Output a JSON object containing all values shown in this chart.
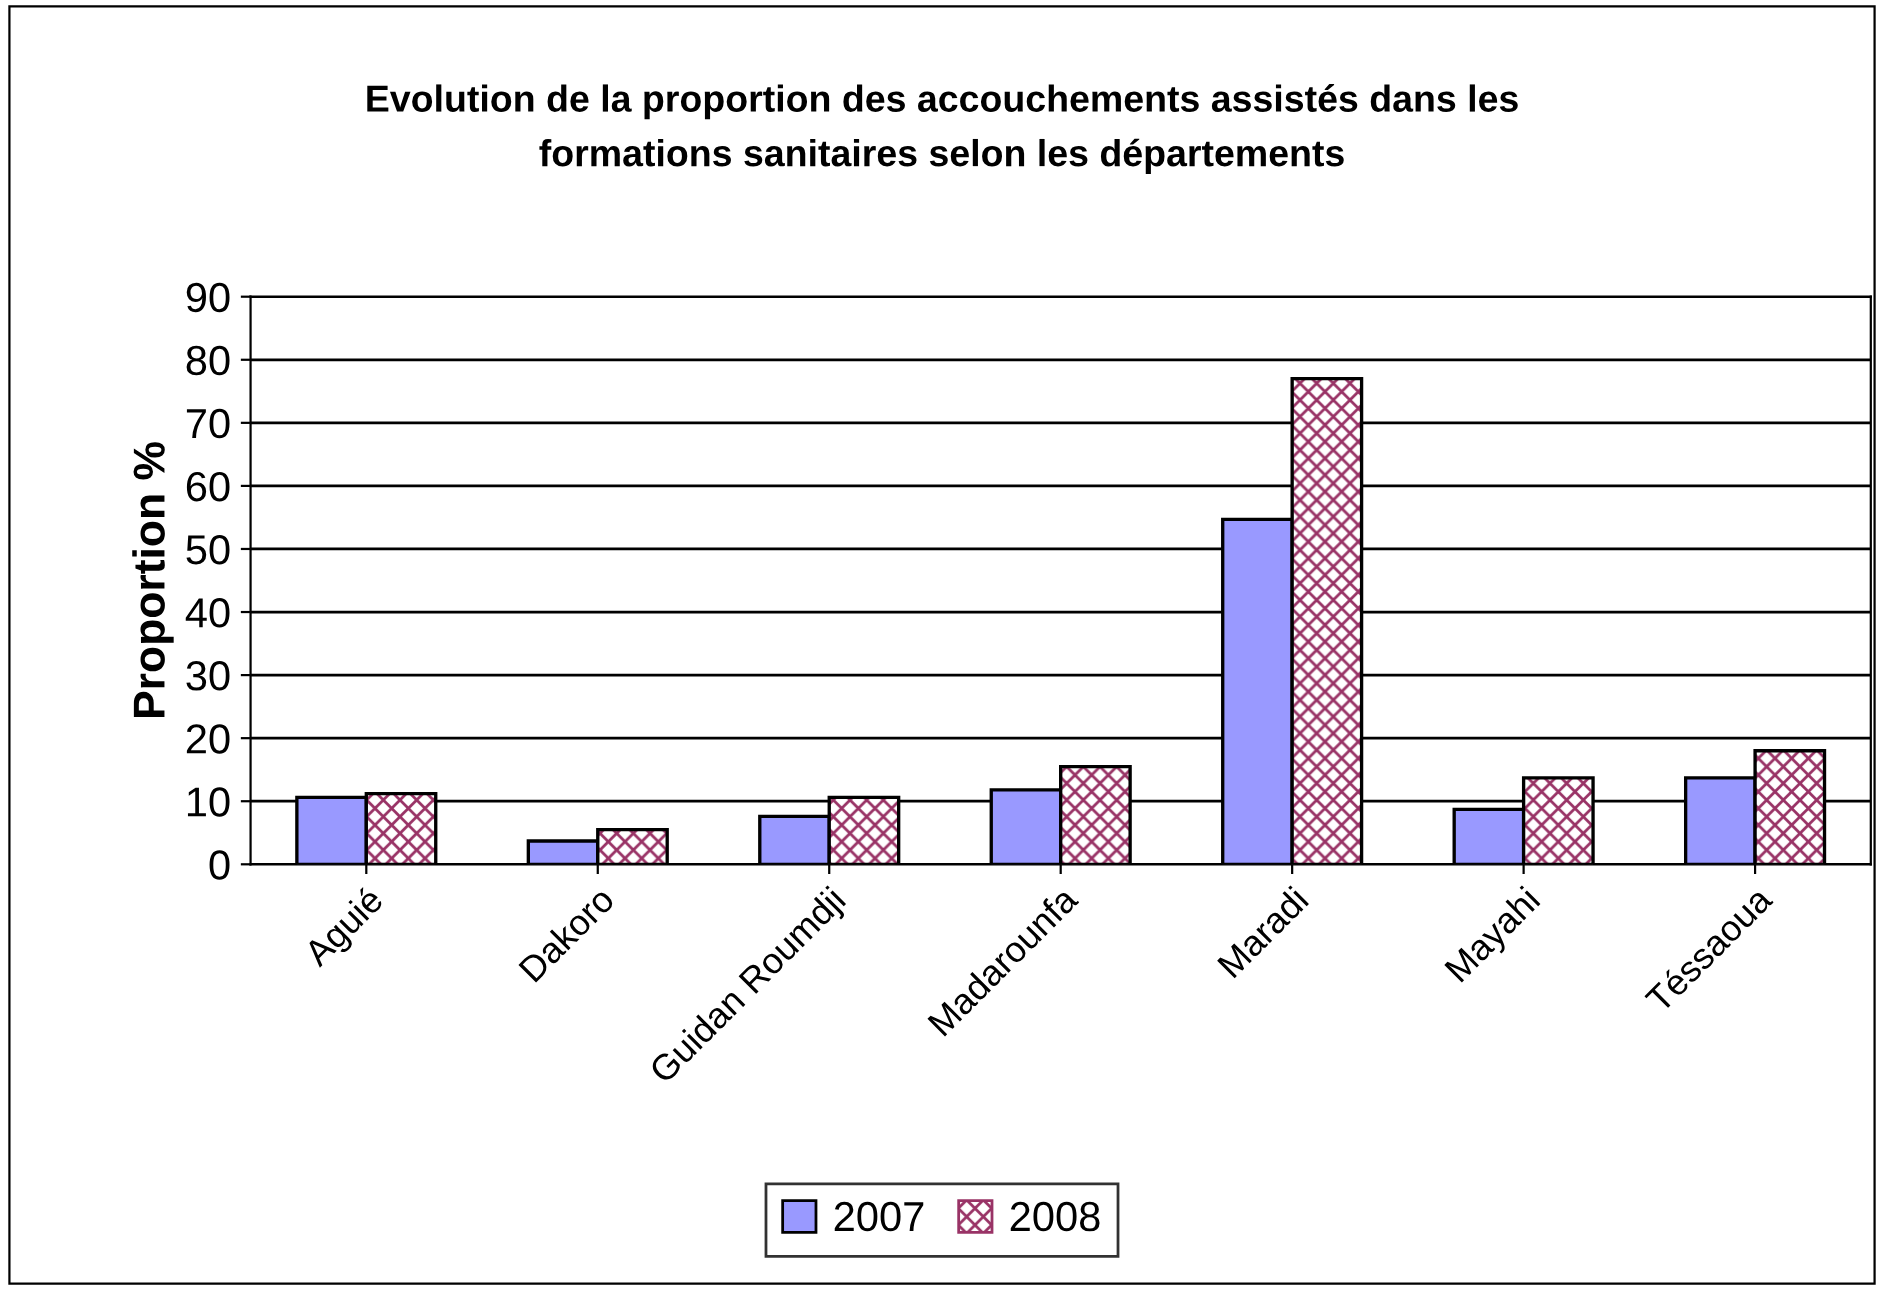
{
  "chart_data": {
    "type": "bar",
    "title": "Evolution de la proportion des accouchements assistés dans les\nformations sanitaires selon les départements",
    "ylabel": "Proportion %",
    "categories": [
      "Aguié",
      "Dakoro",
      "Guidan Roumdji",
      "Madarounfa",
      "Maradi",
      "Mayahi",
      "Téssaoua"
    ],
    "series": [
      {
        "name": "2007",
        "color": "#9999ff",
        "values": [
          10.6,
          3.7,
          7.6,
          11.8,
          54.7,
          8.7,
          13.7
        ]
      },
      {
        "name": "2008",
        "color": "#993366",
        "values": [
          11.2,
          5.5,
          10.6,
          15.5,
          77,
          13.7,
          18.0
        ]
      }
    ],
    "ylim": [
      0,
      90
    ],
    "yticks": [
      0,
      10,
      20,
      30,
      40,
      50,
      60,
      70,
      80,
      90
    ],
    "grid": "y",
    "legend": "bottom"
  }
}
